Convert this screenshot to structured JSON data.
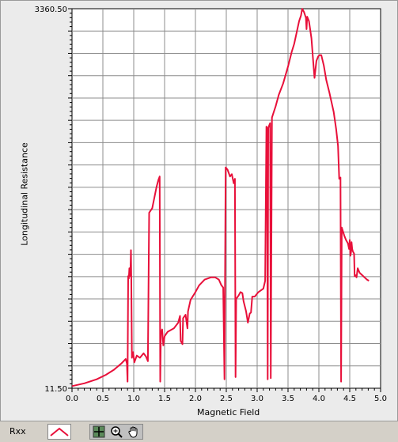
{
  "graph": {
    "xlabel": "Magnetic Field",
    "ylabel": "Longitudinal Resistance",
    "y_top_label": "3360.50",
    "y_bottom_label": "11.50"
  },
  "legend": {
    "label": "Rxx",
    "color": "#e8103a"
  },
  "tools": [
    "cursor-move-icon",
    "zoom-icon",
    "pan-hand-icon"
  ],
  "chart_data": {
    "type": "line",
    "xlim": [
      0,
      5
    ],
    "ylim": [
      11.5,
      3360.5
    ],
    "x_ticks": [
      "0.0",
      "0.5",
      "1.0",
      "1.5",
      "2.0",
      "2.5",
      "3.0",
      "3.5",
      "4.0",
      "4.5",
      "5.0"
    ],
    "grid": true,
    "series": [
      {
        "name": "Rxx",
        "color": "#e8103a",
        "points": [
          [
            0.0,
            30
          ],
          [
            0.2,
            55
          ],
          [
            0.4,
            90
          ],
          [
            0.55,
            130
          ],
          [
            0.68,
            175
          ],
          [
            0.8,
            230
          ],
          [
            0.87,
            270
          ],
          [
            0.89,
            230
          ],
          [
            0.9,
            70
          ],
          [
            0.91,
            1000
          ],
          [
            0.92,
            980
          ],
          [
            0.93,
            1070
          ],
          [
            0.945,
            1000
          ],
          [
            0.955,
            1230
          ],
          [
            0.96,
            1000
          ],
          [
            0.97,
            280
          ],
          [
            0.99,
            330
          ],
          [
            1.01,
            240
          ],
          [
            1.05,
            300
          ],
          [
            1.1,
            280
          ],
          [
            1.16,
            320
          ],
          [
            1.2,
            290
          ],
          [
            1.23,
            250
          ],
          [
            1.25,
            1560
          ],
          [
            1.3,
            1600
          ],
          [
            1.37,
            1790
          ],
          [
            1.4,
            1850
          ],
          [
            1.42,
            1880
          ],
          [
            1.43,
            70
          ],
          [
            1.44,
            500
          ],
          [
            1.46,
            530
          ],
          [
            1.48,
            390
          ],
          [
            1.5,
            470
          ],
          [
            1.55,
            510
          ],
          [
            1.65,
            540
          ],
          [
            1.72,
            590
          ],
          [
            1.75,
            650
          ],
          [
            1.76,
            430
          ],
          [
            1.79,
            400
          ],
          [
            1.8,
            630
          ],
          [
            1.84,
            660
          ],
          [
            1.87,
            540
          ],
          [
            1.88,
            690
          ],
          [
            1.92,
            790
          ],
          [
            2.0,
            860
          ],
          [
            2.06,
            920
          ],
          [
            2.15,
            970
          ],
          [
            2.25,
            990
          ],
          [
            2.32,
            990
          ],
          [
            2.38,
            970
          ],
          [
            2.42,
            920
          ],
          [
            2.45,
            900
          ],
          [
            2.47,
            90
          ],
          [
            2.49,
            1960
          ],
          [
            2.52,
            1940
          ],
          [
            2.56,
            1880
          ],
          [
            2.59,
            1900
          ],
          [
            2.62,
            1820
          ],
          [
            2.64,
            1860
          ],
          [
            2.65,
            110
          ],
          [
            2.66,
            800
          ],
          [
            2.7,
            830
          ],
          [
            2.73,
            860
          ],
          [
            2.76,
            850
          ],
          [
            2.78,
            780
          ],
          [
            2.82,
            690
          ],
          [
            2.85,
            590
          ],
          [
            2.88,
            670
          ],
          [
            2.9,
            680
          ],
          [
            2.92,
            820
          ],
          [
            2.96,
            820
          ],
          [
            3.02,
            860
          ],
          [
            3.1,
            890
          ],
          [
            3.13,
            960
          ],
          [
            3.15,
            2320
          ],
          [
            3.16,
            2300
          ],
          [
            3.17,
            90
          ],
          [
            3.18,
            2310
          ],
          [
            3.21,
            2350
          ],
          [
            3.22,
            100
          ],
          [
            3.24,
            2400
          ],
          [
            3.3,
            2500
          ],
          [
            3.35,
            2600
          ],
          [
            3.42,
            2700
          ],
          [
            3.5,
            2850
          ],
          [
            3.56,
            2980
          ],
          [
            3.6,
            3050
          ],
          [
            3.64,
            3150
          ],
          [
            3.68,
            3250
          ],
          [
            3.71,
            3300
          ],
          [
            3.73,
            3360
          ],
          [
            3.76,
            3330
          ],
          [
            3.79,
            3280
          ],
          [
            3.8,
            3180
          ],
          [
            3.81,
            3290
          ],
          [
            3.84,
            3250
          ],
          [
            3.88,
            3100
          ],
          [
            3.91,
            2880
          ],
          [
            3.93,
            2750
          ],
          [
            3.96,
            2900
          ],
          [
            3.99,
            2940
          ],
          [
            4.01,
            2950
          ],
          [
            4.04,
            2950
          ],
          [
            4.08,
            2860
          ],
          [
            4.12,
            2730
          ],
          [
            4.17,
            2620
          ],
          [
            4.24,
            2450
          ],
          [
            4.28,
            2300
          ],
          [
            4.31,
            2150
          ],
          [
            4.33,
            1860
          ],
          [
            4.35,
            1870
          ],
          [
            4.36,
            70
          ],
          [
            4.37,
            1430
          ],
          [
            4.41,
            1360
          ],
          [
            4.44,
            1320
          ],
          [
            4.47,
            1290
          ],
          [
            4.49,
            1240
          ],
          [
            4.5,
            1320
          ],
          [
            4.51,
            1180
          ],
          [
            4.52,
            1210
          ],
          [
            4.53,
            1300
          ],
          [
            4.54,
            1240
          ],
          [
            4.55,
            1220
          ],
          [
            4.57,
            1200
          ],
          [
            4.58,
            1000
          ],
          [
            4.59,
            1010
          ],
          [
            4.61,
            990
          ],
          [
            4.63,
            1070
          ],
          [
            4.66,
            1030
          ],
          [
            4.7,
            1010
          ],
          [
            4.74,
            990
          ],
          [
            4.78,
            970
          ],
          [
            4.81,
            960
          ]
        ]
      }
    ]
  }
}
